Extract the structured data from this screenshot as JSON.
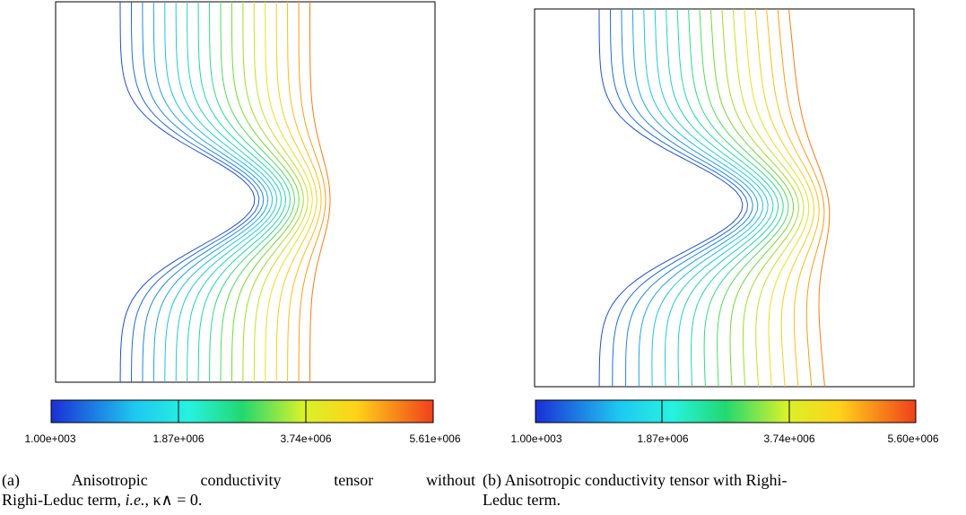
{
  "panels": [
    {
      "id": "a",
      "colorbar_ticks": [
        "1.00e+003",
        "1.87e+006",
        "3.74e+006",
        "5.61e+006"
      ],
      "caption_line1": "(a) Anisotropic conductivity tensor without",
      "caption_line2_a": "Righi-Leduc term, ",
      "caption_line2_ie": "i.e.",
      "caption_line2_b": ", κ∧ = 0."
    },
    {
      "id": "b",
      "colorbar_ticks": [
        "1.00e+003",
        "1.87e+006",
        "3.74e+006",
        "5.60e+006"
      ],
      "caption_line1": "(b) Anisotropic conductivity tensor with Righi-",
      "caption_line2": "Leduc term."
    }
  ],
  "colors": {
    "contour_low": "#1f4fd8",
    "contour_mid": "#22d08a",
    "contour_high": "#ff7a10",
    "frame": "#000000"
  },
  "contour_count": 18
}
